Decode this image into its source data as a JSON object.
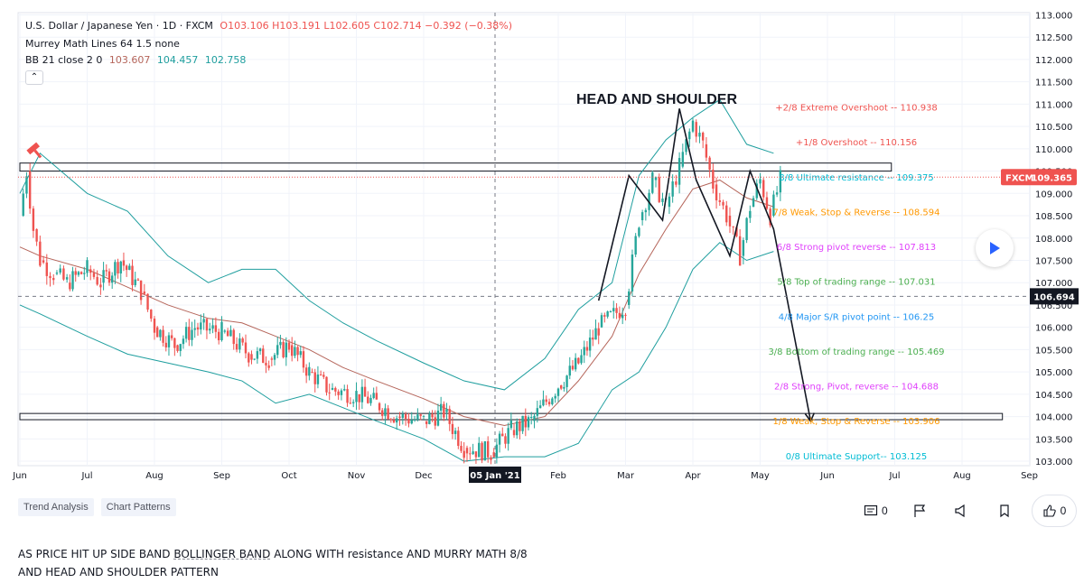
{
  "legend": {
    "symbol": "U.S. Dollar / Japanese Yen · 1D · FXCM",
    "ohlc": "O103.106 H103.191 L102.605 C102.714 −0.392 (−0.38%)",
    "murrey": "Murrey Math Lines 64 1.5 none",
    "bb_label": "BB 21 close 2 0",
    "bb_values": [
      "103.607",
      "104.457",
      "102.758"
    ],
    "collapse_icon": "chevron-up-icon"
  },
  "annotation_title": "HEAD AND SHOULDER",
  "crosshair_date": "05 Jan '21",
  "price_tags": {
    "last": "109.365",
    "last_label": "FXCM",
    "crosshair": "106.694"
  },
  "colors": {
    "up": "#26a69a",
    "down": "#ef5350",
    "bb_band": "#1e9e9e",
    "bb_basis": "#b5655a",
    "text": "#131722",
    "grid": "#f0f3fa"
  },
  "chart_data": {
    "type": "line",
    "title": "U.S. Dollar / Japanese Yen · 1D · FXCM",
    "ylim": [
      102.9,
      113.05
    ],
    "y_ticks": [
      "103.000",
      "103.500",
      "104.000",
      "104.500",
      "105.000",
      "105.500",
      "106.000",
      "106.500",
      "107.000",
      "107.500",
      "108.000",
      "108.500",
      "109.000",
      "109.500",
      "110.000",
      "110.500",
      "111.000",
      "111.500",
      "112.000",
      "112.500",
      "113.000"
    ],
    "x_ticks": [
      "Jun",
      "Jul",
      "Aug",
      "Sep",
      "Oct",
      "Nov",
      "Dec",
      "Feb",
      "Mar",
      "Apr",
      "May",
      "Jun",
      "Jul",
      "Aug",
      "Sep"
    ],
    "x_tick_months": [
      0,
      1,
      2,
      3,
      4,
      5,
      6,
      8,
      9,
      10,
      11,
      12,
      13,
      14,
      15
    ],
    "series": [
      {
        "name": "USDJPY close",
        "x_month": [
          0.0,
          0.1,
          0.2,
          0.3,
          0.5,
          0.7,
          1.0,
          1.2,
          1.5,
          1.8,
          2.0,
          2.3,
          2.6,
          3.0,
          3.4,
          3.7,
          4.0,
          4.3,
          4.6,
          5.0,
          5.3,
          5.6,
          6.0,
          6.3,
          6.6,
          7.0,
          7.3,
          7.6,
          8.0,
          8.3,
          8.6,
          9.0,
          9.2,
          9.4,
          9.6,
          9.8,
          10.0,
          10.15,
          10.3,
          10.5,
          10.7,
          10.85,
          11.0,
          11.15,
          11.3
        ],
        "values": [
          108.5,
          109.5,
          108.2,
          107.5,
          107.2,
          107.0,
          107.3,
          107.0,
          107.5,
          106.8,
          106.0,
          105.6,
          106.0,
          105.9,
          105.4,
          105.3,
          105.6,
          105.0,
          104.6,
          104.5,
          104.3,
          104.0,
          103.9,
          104.1,
          103.3,
          103.2,
          103.7,
          103.9,
          104.7,
          105.2,
          106.0,
          106.5,
          108.4,
          109.3,
          108.7,
          109.6,
          110.6,
          110.1,
          109.2,
          108.5,
          107.6,
          108.7,
          109.3,
          108.5,
          109.3
        ]
      },
      {
        "name": "BB upper",
        "x_month": [
          0.0,
          0.3,
          1.0,
          1.6,
          2.2,
          2.8,
          3.3,
          3.8,
          4.3,
          4.8,
          5.3,
          6.0,
          6.6,
          7.2,
          7.8,
          8.3,
          8.8,
          9.2,
          9.6,
          10.0,
          10.4,
          10.8,
          11.2
        ],
        "values": [
          109.0,
          109.9,
          109.0,
          108.6,
          107.6,
          107.0,
          107.3,
          107.3,
          106.6,
          106.1,
          105.7,
          105.2,
          104.8,
          104.6,
          105.3,
          106.4,
          107.0,
          109.4,
          110.2,
          110.7,
          111.1,
          110.1,
          109.9
        ]
      },
      {
        "name": "BB basis",
        "x_month": [
          0.0,
          0.3,
          1.0,
          1.6,
          2.2,
          2.8,
          3.3,
          3.8,
          4.3,
          4.8,
          5.3,
          6.0,
          6.6,
          7.2,
          7.8,
          8.3,
          8.8,
          9.2,
          9.6,
          10.0,
          10.4,
          10.8,
          11.2
        ],
        "values": [
          107.8,
          107.6,
          107.3,
          106.9,
          106.5,
          106.2,
          106.1,
          105.8,
          105.5,
          105.1,
          104.8,
          104.4,
          104.0,
          103.8,
          104.0,
          104.8,
          105.8,
          107.2,
          108.2,
          109.1,
          109.3,
          108.9,
          108.7
        ]
      },
      {
        "name": "BB lower",
        "x_month": [
          0.0,
          0.3,
          1.0,
          1.6,
          2.2,
          2.8,
          3.3,
          3.8,
          4.3,
          4.8,
          5.3,
          6.0,
          6.6,
          7.2,
          7.8,
          8.3,
          8.8,
          9.2,
          9.6,
          10.0,
          10.4,
          10.8,
          11.2
        ],
        "values": [
          106.5,
          106.3,
          105.8,
          105.4,
          105.2,
          105.0,
          104.8,
          104.3,
          104.5,
          104.2,
          103.9,
          103.5,
          103.0,
          103.1,
          103.1,
          103.4,
          104.6,
          105.0,
          106.0,
          107.3,
          107.9,
          107.5,
          107.7
        ]
      },
      {
        "name": "pattern",
        "x_month": [
          8.6,
          9.05,
          9.55,
          9.8,
          10.05,
          10.55,
          10.85,
          11.2,
          11.75
        ],
        "values": [
          106.6,
          109.4,
          108.4,
          110.9,
          109.3,
          107.6,
          109.5,
          108.2,
          103.9
        ]
      }
    ],
    "murrey_levels": [
      {
        "label": "+2/8 Extreme Overshoot -- 110.938",
        "value": 110.938,
        "color": "#ef5350"
      },
      {
        "label": "+1/8 Overshoot -- 110.156",
        "value": 110.156,
        "color": "#ef5350"
      },
      {
        "label": "8/8 Ultimate resistance -- 109.375",
        "value": 109.375,
        "color": "#00bcd4"
      },
      {
        "label": "7/8 Weak, Stop & Reverse -- 108.594",
        "value": 108.594,
        "color": "#ff9800"
      },
      {
        "label": "6/8 Strong pivot reverse -- 107.813",
        "value": 107.813,
        "color": "#e040fb"
      },
      {
        "label": "5/8 Top of trading range -- 107.031",
        "value": 107.031,
        "color": "#4caf50"
      },
      {
        "label": "4/8 Major S/R pivot point -- 106.25",
        "value": 106.25,
        "color": "#2196f3"
      },
      {
        "label": "3/8 Bottom of trading range -- 105.469",
        "value": 105.469,
        "color": "#4caf50"
      },
      {
        "label": "2/8 Strong, Pivot, reverse -- 104.688",
        "value": 104.688,
        "color": "#e040fb"
      },
      {
        "label": "1/8 Weak, Stop & Reverse -- 103.906",
        "value": 103.906,
        "color": "#ff9800"
      },
      {
        "label": "0/8 Ultimate Support-- 103.125",
        "value": 103.125,
        "color": "#00bcd4"
      }
    ],
    "zones": [
      {
        "from": 109.5,
        "to": 109.68,
        "x_month": [
          0.0,
          12.95
        ]
      },
      {
        "from": 103.93,
        "to": 104.07,
        "x_month": [
          0.0,
          14.6
        ]
      }
    ]
  },
  "tags": [
    "Trend Analysis",
    "Chart Patterns"
  ],
  "toolbar": {
    "comments_count": "0",
    "likes_count": "0",
    "icons": [
      "comment-icon",
      "flag-icon",
      "megaphone-icon",
      "bookmark-icon",
      "thumbs-up-icon"
    ]
  },
  "description": {
    "part1": "AS PRICE HIT UP SIDE BAND ",
    "link": "BOLLINGER BAND",
    "part2": " ALONG WITH resistance AND MURRY MATH 8/8",
    "line2": "AND HEAD AND SHOULDER PATTERN"
  }
}
